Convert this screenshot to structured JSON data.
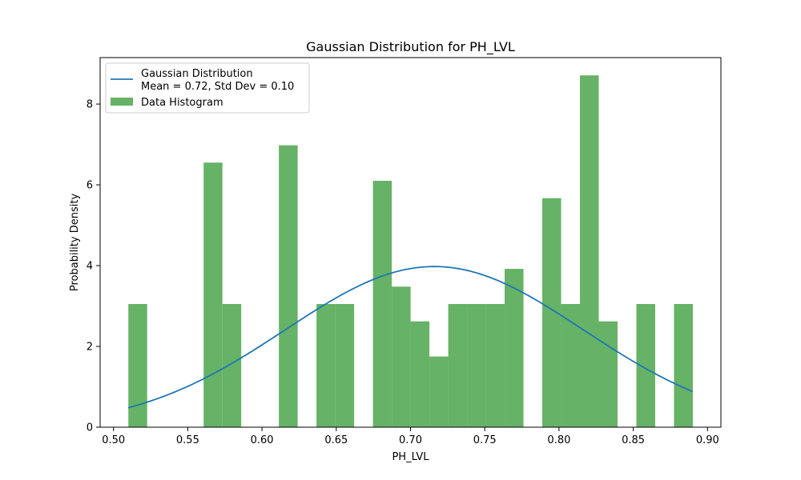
{
  "chart_data": {
    "type": "bar",
    "title": "Gaussian Distribution for PH_LVL",
    "xlabel": "PH_LVL",
    "ylabel": "Probability Density",
    "xlim": [
      0.491,
      0.909
    ],
    "ylim": [
      0,
      9.15
    ],
    "xticks": [
      0.5,
      0.55,
      0.6,
      0.65,
      0.7,
      0.75,
      0.8,
      0.85,
      0.9
    ],
    "xtick_labels": [
      "0.50",
      "0.55",
      "0.60",
      "0.65",
      "0.70",
      "0.75",
      "0.80",
      "0.85",
      "0.90"
    ],
    "yticks": [
      0,
      2,
      4,
      6,
      8
    ],
    "ytick_labels": [
      "0",
      "2",
      "4",
      "6",
      "8"
    ],
    "grid": false,
    "legend_position": "top-left",
    "histogram": {
      "name": "Data Histogram",
      "color": "#66b266",
      "bin_start": 0.51,
      "bin_width": 0.01267,
      "values": [
        3.05,
        0,
        0,
        0,
        6.55,
        3.05,
        0,
        0,
        6.98,
        0,
        3.05,
        3.05,
        0,
        6.1,
        3.48,
        2.62,
        1.75,
        3.05,
        3.05,
        3.05,
        3.92,
        0,
        5.67,
        3.05,
        8.71,
        2.62,
        0,
        3.05,
        0,
        3.05
      ]
    },
    "gaussian": {
      "name_line1": "Gaussian Distribution",
      "name_line2": "Mean = 0.72, Std Dev = 0.10",
      "color": "#1f77b4",
      "mean": 0.716,
      "std": 0.1003,
      "x_start": 0.51,
      "x_end": 0.89
    }
  }
}
